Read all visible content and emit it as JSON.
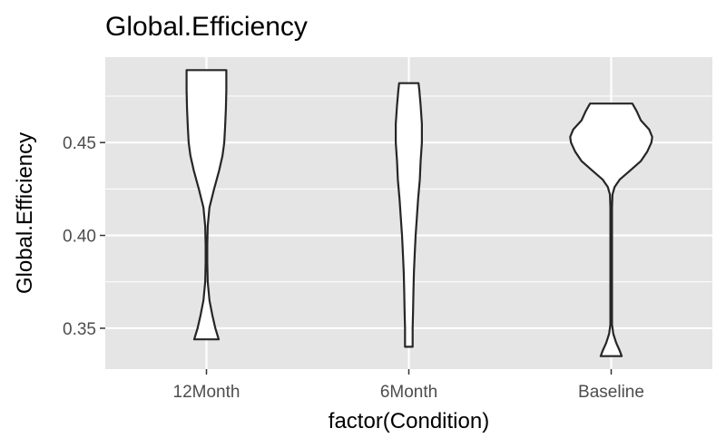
{
  "chart_data": {
    "type": "violin",
    "title": "Global.Efficiency",
    "xlabel": "factor(Condition)",
    "ylabel": "Global.Efficiency",
    "categories": [
      "12Month",
      "6Month",
      "Baseline"
    ],
    "y_ticks": [
      0.35,
      0.4,
      0.45
    ],
    "y_tick_labels": [
      "0.35",
      "0.40",
      "0.45"
    ],
    "ylim": [
      0.328,
      0.496
    ],
    "grid": true,
    "colors": {
      "panel": "#e5e5e5",
      "grid": "#ffffff",
      "violin_fill": "#ffffff",
      "violin_stroke": "#262626",
      "tick": "#333333"
    },
    "violins": [
      {
        "category": "12Month",
        "min": 0.344,
        "max": 0.489,
        "profile": [
          [
            0.344,
            0.029
          ],
          [
            0.35,
            0.021
          ],
          [
            0.357,
            0.014
          ],
          [
            0.365,
            0.007
          ],
          [
            0.375,
            0.003
          ],
          [
            0.385,
            0.002
          ],
          [
            0.395,
            0.002
          ],
          [
            0.405,
            0.003
          ],
          [
            0.415,
            0.007
          ],
          [
            0.425,
            0.018
          ],
          [
            0.435,
            0.03
          ],
          [
            0.443,
            0.038
          ],
          [
            0.45,
            0.042
          ],
          [
            0.458,
            0.044
          ],
          [
            0.468,
            0.046
          ],
          [
            0.478,
            0.047
          ],
          [
            0.485,
            0.047
          ],
          [
            0.489,
            0.047
          ]
        ]
      },
      {
        "category": "6Month",
        "min": 0.34,
        "max": 0.482,
        "profile": [
          [
            0.34,
            0.009
          ],
          [
            0.35,
            0.009
          ],
          [
            0.36,
            0.01
          ],
          [
            0.37,
            0.011
          ],
          [
            0.38,
            0.012
          ],
          [
            0.39,
            0.014
          ],
          [
            0.4,
            0.016
          ],
          [
            0.41,
            0.019
          ],
          [
            0.42,
            0.022
          ],
          [
            0.43,
            0.026
          ],
          [
            0.44,
            0.028
          ],
          [
            0.45,
            0.031
          ],
          [
            0.46,
            0.031
          ],
          [
            0.47,
            0.028
          ],
          [
            0.478,
            0.025
          ],
          [
            0.482,
            0.023
          ]
        ]
      },
      {
        "category": "Baseline",
        "min": 0.335,
        "max": 0.471,
        "profile": [
          [
            0.335,
            0.025
          ],
          [
            0.338,
            0.02
          ],
          [
            0.342,
            0.012
          ],
          [
            0.347,
            0.005
          ],
          [
            0.352,
            0.002
          ],
          [
            0.36,
            0.002
          ],
          [
            0.38,
            0.002
          ],
          [
            0.4,
            0.002
          ],
          [
            0.415,
            0.002
          ],
          [
            0.422,
            0.003
          ],
          [
            0.426,
            0.008
          ],
          [
            0.43,
            0.02
          ],
          [
            0.435,
            0.045
          ],
          [
            0.44,
            0.07
          ],
          [
            0.445,
            0.085
          ],
          [
            0.45,
            0.095
          ],
          [
            0.453,
            0.097
          ],
          [
            0.457,
            0.09
          ],
          [
            0.462,
            0.07
          ],
          [
            0.467,
            0.06
          ],
          [
            0.471,
            0.05
          ]
        ]
      }
    ]
  }
}
